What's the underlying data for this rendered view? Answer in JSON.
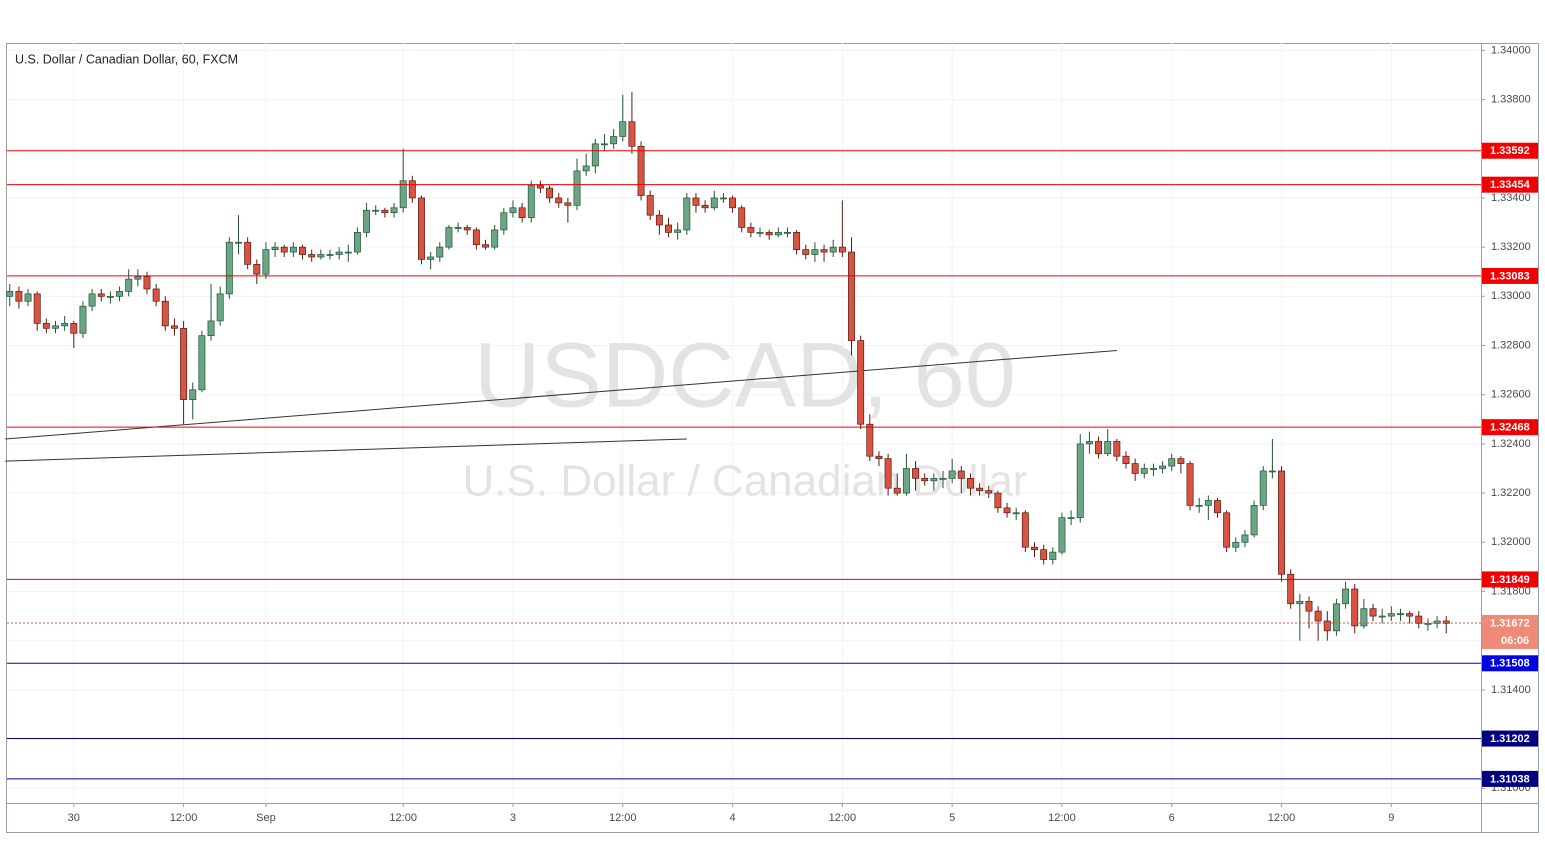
{
  "chart_data": {
    "type": "candlestick",
    "title": "U.S. Dollar / Canadian Dollar, 60, FXCM",
    "watermark": "USDCAD, 60",
    "watermark_subtitle": "U.S. Dollar / Canadian Dollar",
    "up_color": "#6ba583",
    "down_color": "#d75442",
    "xlim": [
      -0.3,
      160.8
    ],
    "ylim": [
      1.3094,
      1.3403
    ],
    "grid": true,
    "xticks": [
      {
        "value": 7,
        "label": "30"
      },
      {
        "value": 19,
        "label": "12:00"
      },
      {
        "value": 28,
        "label": "Sep"
      },
      {
        "value": 43,
        "label": "12:00"
      },
      {
        "value": 55,
        "label": "3"
      },
      {
        "value": 67,
        "label": "12:00"
      },
      {
        "value": 79,
        "label": "4"
      },
      {
        "value": 91,
        "label": "12:00"
      },
      {
        "value": 103,
        "label": "5"
      },
      {
        "value": 115,
        "label": "12:00"
      },
      {
        "value": 127,
        "label": "6"
      },
      {
        "value": 139,
        "label": "12:00"
      },
      {
        "value": 151,
        "label": "9"
      }
    ],
    "yticks": [
      {
        "value": 1.31,
        "label": "1.31000"
      },
      {
        "value": 1.312,
        "label": "1.31200"
      },
      {
        "value": 1.314,
        "label": "1.31400"
      },
      {
        "value": 1.316,
        "label": "1.31600"
      },
      {
        "value": 1.318,
        "label": "1.31800"
      },
      {
        "value": 1.32,
        "label": "1.32000"
      },
      {
        "value": 1.322,
        "label": "1.32200"
      },
      {
        "value": 1.324,
        "label": "1.32400"
      },
      {
        "value": 1.326,
        "label": "1.32600"
      },
      {
        "value": 1.328,
        "label": "1.32800"
      },
      {
        "value": 1.33,
        "label": "1.33000"
      },
      {
        "value": 1.332,
        "label": "1.33200"
      },
      {
        "value": 1.334,
        "label": "1.33400"
      },
      {
        "value": 1.336,
        "label": "1.33600"
      },
      {
        "value": 1.338,
        "label": "1.33800"
      },
      {
        "value": 1.34,
        "label": "1.34000"
      }
    ],
    "levels": [
      {
        "value": 1.33592,
        "color": "#f00000"
      },
      {
        "value": 1.33454,
        "color": "#f00000"
      },
      {
        "value": 1.33083,
        "color": "#f00000"
      },
      {
        "value": 1.32468,
        "color": "#f00000"
      },
      {
        "value": 1.31849,
        "color": "#f00000"
      },
      {
        "value": 1.31508,
        "color": "#0000e0"
      },
      {
        "value": 1.31202,
        "color": "#000080"
      },
      {
        "value": 1.31038,
        "color": "#000080"
      }
    ],
    "current_price": 1.31672,
    "current_color": "#ef8a78",
    "countdown": "06:06",
    "trendlines": [
      {
        "x": [
          -0.5,
          121
        ],
        "y": [
          1.3242,
          1.3278
        ]
      },
      {
        "x": [
          -0.5,
          74
        ],
        "y": [
          1.3233,
          1.3242
        ]
      }
    ],
    "ohlc": [
      [
        1.33,
        1.3305,
        1.3296,
        1.3302
      ],
      [
        1.3302,
        1.3304,
        1.3295,
        1.3298
      ],
      [
        1.3298,
        1.3303,
        1.3296,
        1.3301
      ],
      [
        1.3301,
        1.3302,
        1.3286,
        1.3289
      ],
      [
        1.3289,
        1.3291,
        1.3285,
        1.3287
      ],
      [
        1.3287,
        1.329,
        1.3285,
        1.3288
      ],
      [
        1.3288,
        1.3292,
        1.3286,
        1.3289
      ],
      [
        1.3289,
        1.329,
        1.3279,
        1.3285
      ],
      [
        1.3285,
        1.3298,
        1.3283,
        1.3296
      ],
      [
        1.3296,
        1.3303,
        1.3294,
        1.3301
      ],
      [
        1.3301,
        1.3303,
        1.3298,
        1.33
      ],
      [
        1.33,
        1.3302,
        1.3297,
        1.33
      ],
      [
        1.33,
        1.3304,
        1.3298,
        1.3302
      ],
      [
        1.3302,
        1.3311,
        1.33,
        1.3307
      ],
      [
        1.3307,
        1.3311,
        1.3304,
        1.3308
      ],
      [
        1.3308,
        1.331,
        1.3301,
        1.3303
      ],
      [
        1.3303,
        1.3305,
        1.3296,
        1.3298
      ],
      [
        1.3298,
        1.33,
        1.3286,
        1.3288
      ],
      [
        1.3288,
        1.3291,
        1.3284,
        1.3287
      ],
      [
        1.3287,
        1.329,
        1.3248,
        1.3258
      ],
      [
        1.3258,
        1.3265,
        1.325,
        1.3262
      ],
      [
        1.3262,
        1.3286,
        1.3261,
        1.3284
      ],
      [
        1.3284,
        1.3305,
        1.3282,
        1.329
      ],
      [
        1.329,
        1.3304,
        1.3288,
        1.3301
      ],
      [
        1.3301,
        1.3324,
        1.3299,
        1.3322
      ],
      [
        1.3322,
        1.3333,
        1.3317,
        1.3322
      ],
      [
        1.3322,
        1.3324,
        1.3311,
        1.3313
      ],
      [
        1.3313,
        1.3315,
        1.3305,
        1.3309
      ],
      [
        1.3309,
        1.3322,
        1.3307,
        1.3319
      ],
      [
        1.3319,
        1.3322,
        1.3316,
        1.332
      ],
      [
        1.332,
        1.3321,
        1.3316,
        1.3318
      ],
      [
        1.3318,
        1.3322,
        1.3316,
        1.332
      ],
      [
        1.332,
        1.3321,
        1.3315,
        1.3317
      ],
      [
        1.3317,
        1.3319,
        1.3314,
        1.3316
      ],
      [
        1.3316,
        1.3319,
        1.3315,
        1.3317
      ],
      [
        1.3317,
        1.3319,
        1.3315,
        1.3317
      ],
      [
        1.3317,
        1.332,
        1.3315,
        1.3318
      ],
      [
        1.3318,
        1.3321,
        1.3314,
        1.3318
      ],
      [
        1.3318,
        1.3328,
        1.3317,
        1.3326
      ],
      [
        1.3326,
        1.3338,
        1.3324,
        1.3335
      ],
      [
        1.3335,
        1.3337,
        1.3333,
        1.3335
      ],
      [
        1.3335,
        1.3336,
        1.3332,
        1.3334
      ],
      [
        1.3334,
        1.3338,
        1.3332,
        1.3336
      ],
      [
        1.3336,
        1.336,
        1.3334,
        1.3347
      ],
      [
        1.3347,
        1.3349,
        1.3338,
        1.334
      ],
      [
        1.334,
        1.3341,
        1.3313,
        1.3315
      ],
      [
        1.3315,
        1.3318,
        1.3311,
        1.3316
      ],
      [
        1.3316,
        1.3322,
        1.3314,
        1.332
      ],
      [
        1.332,
        1.3329,
        1.3319,
        1.3328
      ],
      [
        1.3328,
        1.333,
        1.3326,
        1.3328
      ],
      [
        1.3328,
        1.3329,
        1.3325,
        1.3327
      ],
      [
        1.3327,
        1.3328,
        1.3319,
        1.3321
      ],
      [
        1.3321,
        1.3323,
        1.3319,
        1.332
      ],
      [
        1.332,
        1.3329,
        1.3319,
        1.3327
      ],
      [
        1.3327,
        1.3336,
        1.3325,
        1.3334
      ],
      [
        1.3334,
        1.3339,
        1.3332,
        1.3336
      ],
      [
        1.3336,
        1.3338,
        1.333,
        1.3332
      ],
      [
        1.3332,
        1.3347,
        1.333,
        1.3345
      ],
      [
        1.3345,
        1.3347,
        1.3342,
        1.3344
      ],
      [
        1.3344,
        1.3345,
        1.3338,
        1.334
      ],
      [
        1.334,
        1.3342,
        1.3336,
        1.3338
      ],
      [
        1.3338,
        1.334,
        1.333,
        1.3337
      ],
      [
        1.3337,
        1.3356,
        1.3335,
        1.3351
      ],
      [
        1.3351,
        1.3358,
        1.3349,
        1.3353
      ],
      [
        1.3353,
        1.3364,
        1.335,
        1.3362
      ],
      [
        1.3362,
        1.3366,
        1.3359,
        1.3362
      ],
      [
        1.3362,
        1.3368,
        1.336,
        1.3365
      ],
      [
        1.3365,
        1.3382,
        1.3363,
        1.3371
      ],
      [
        1.3371,
        1.3383,
        1.3358,
        1.3361
      ],
      [
        1.3361,
        1.3363,
        1.3339,
        1.3341
      ],
      [
        1.3341,
        1.3343,
        1.3331,
        1.3333
      ],
      [
        1.3333,
        1.3335,
        1.3325,
        1.3329
      ],
      [
        1.3329,
        1.3332,
        1.3324,
        1.3326
      ],
      [
        1.3326,
        1.333,
        1.3323,
        1.3327
      ],
      [
        1.3327,
        1.3342,
        1.3325,
        1.334
      ],
      [
        1.334,
        1.3342,
        1.3334,
        1.3337
      ],
      [
        1.3337,
        1.3339,
        1.3334,
        1.3336
      ],
      [
        1.3336,
        1.3343,
        1.3335,
        1.334
      ],
      [
        1.334,
        1.3342,
        1.3338,
        1.334
      ],
      [
        1.334,
        1.3341,
        1.3334,
        1.3336
      ],
      [
        1.3336,
        1.3337,
        1.3326,
        1.3328
      ],
      [
        1.3328,
        1.333,
        1.3324,
        1.3326
      ],
      [
        1.3326,
        1.3328,
        1.3324,
        1.3326
      ],
      [
        1.3326,
        1.3327,
        1.3323,
        1.3325
      ],
      [
        1.3325,
        1.3328,
        1.3324,
        1.3326
      ],
      [
        1.3326,
        1.3328,
        1.3324,
        1.3326
      ],
      [
        1.3326,
        1.3327,
        1.3317,
        1.3319
      ],
      [
        1.3319,
        1.3321,
        1.3315,
        1.3317
      ],
      [
        1.3317,
        1.3322,
        1.3314,
        1.3319
      ],
      [
        1.3319,
        1.3321,
        1.3314,
        1.3318
      ],
      [
        1.3318,
        1.3323,
        1.3316,
        1.332
      ],
      [
        1.332,
        1.3339,
        1.3316,
        1.3318
      ],
      [
        1.3318,
        1.3324,
        1.3276,
        1.3282
      ],
      [
        1.3282,
        1.3284,
        1.3246,
        1.3248
      ],
      [
        1.3248,
        1.3252,
        1.3233,
        1.3235
      ],
      [
        1.3235,
        1.3237,
        1.3231,
        1.3234
      ],
      [
        1.3234,
        1.3236,
        1.3219,
        1.3222
      ],
      [
        1.3222,
        1.3228,
        1.3219,
        1.322
      ],
      [
        1.322,
        1.3236,
        1.3219,
        1.323
      ],
      [
        1.323,
        1.3233,
        1.3221,
        1.3226
      ],
      [
        1.3226,
        1.3228,
        1.3223,
        1.3225
      ],
      [
        1.3225,
        1.3228,
        1.3221,
        1.3226
      ],
      [
        1.3226,
        1.3229,
        1.3222,
        1.3226
      ],
      [
        1.3226,
        1.3234,
        1.3224,
        1.3229
      ],
      [
        1.3229,
        1.3231,
        1.322,
        1.3226
      ],
      [
        1.3226,
        1.3228,
        1.3219,
        1.3222
      ],
      [
        1.3222,
        1.3224,
        1.3219,
        1.3221
      ],
      [
        1.3221,
        1.3223,
        1.3218,
        1.322
      ],
      [
        1.322,
        1.3221,
        1.3212,
        1.3214
      ],
      [
        1.3214,
        1.3216,
        1.321,
        1.3212
      ],
      [
        1.3212,
        1.3214,
        1.3209,
        1.3212
      ],
      [
        1.3212,
        1.3213,
        1.3196,
        1.3198
      ],
      [
        1.3198,
        1.32,
        1.3194,
        1.3197
      ],
      [
        1.3197,
        1.3199,
        1.3191,
        1.3193
      ],
      [
        1.3193,
        1.3198,
        1.3191,
        1.3196
      ],
      [
        1.3196,
        1.3212,
        1.3195,
        1.321
      ],
      [
        1.321,
        1.3213,
        1.3207,
        1.321
      ],
      [
        1.321,
        1.3244,
        1.3208,
        1.324
      ],
      [
        1.324,
        1.3245,
        1.3236,
        1.3241
      ],
      [
        1.3241,
        1.3243,
        1.3234,
        1.3236
      ],
      [
        1.3236,
        1.3246,
        1.3235,
        1.3241
      ],
      [
        1.3241,
        1.3242,
        1.3233,
        1.3235
      ],
      [
        1.3235,
        1.3237,
        1.323,
        1.3232
      ],
      [
        1.3232,
        1.3234,
        1.3225,
        1.3228
      ],
      [
        1.3228,
        1.3232,
        1.3226,
        1.323
      ],
      [
        1.323,
        1.3232,
        1.3227,
        1.323
      ],
      [
        1.323,
        1.3233,
        1.3228,
        1.3231
      ],
      [
        1.3231,
        1.3236,
        1.3229,
        1.3234
      ],
      [
        1.3234,
        1.3235,
        1.3228,
        1.3232
      ],
      [
        1.3232,
        1.3233,
        1.3213,
        1.3215
      ],
      [
        1.3215,
        1.3218,
        1.3212,
        1.3215
      ],
      [
        1.3215,
        1.3219,
        1.3209,
        1.3217
      ],
      [
        1.3217,
        1.3218,
        1.321,
        1.3212
      ],
      [
        1.3212,
        1.3213,
        1.3196,
        1.3198
      ],
      [
        1.3198,
        1.3202,
        1.3196,
        1.32
      ],
      [
        1.32,
        1.3205,
        1.3198,
        1.3203
      ],
      [
        1.3203,
        1.3217,
        1.3202,
        1.3215
      ],
      [
        1.3215,
        1.3231,
        1.3213,
        1.3229
      ],
      [
        1.3229,
        1.3242,
        1.3226,
        1.3229
      ],
      [
        1.3229,
        1.3231,
        1.3184,
        1.3187
      ],
      [
        1.3187,
        1.3189,
        1.3173,
        1.3175
      ],
      [
        1.3175,
        1.3179,
        1.316,
        1.3176
      ],
      [
        1.3176,
        1.3178,
        1.3165,
        1.3172
      ],
      [
        1.3172,
        1.3174,
        1.316,
        1.3168
      ],
      [
        1.3168,
        1.3172,
        1.316,
        1.3164
      ],
      [
        1.3164,
        1.3177,
        1.3162,
        1.3175
      ],
      [
        1.3175,
        1.3184,
        1.3173,
        1.3181
      ],
      [
        1.3181,
        1.3183,
        1.3163,
        1.3166
      ],
      [
        1.3166,
        1.3177,
        1.3165,
        1.3173
      ],
      [
        1.3173,
        1.3175,
        1.3168,
        1.317
      ],
      [
        1.317,
        1.3173,
        1.3167,
        1.317
      ],
      [
        1.317,
        1.3174,
        1.3168,
        1.3171
      ],
      [
        1.3171,
        1.3173,
        1.3168,
        1.3171
      ],
      [
        1.3171,
        1.3172,
        1.3167,
        1.317
      ],
      [
        1.317,
        1.3172,
        1.3165,
        1.3167
      ],
      [
        1.3167,
        1.3169,
        1.3164,
        1.3167
      ],
      [
        1.3167,
        1.317,
        1.3165,
        1.3168
      ],
      [
        1.3168,
        1.317,
        1.3163,
        1.3167
      ]
    ]
  }
}
